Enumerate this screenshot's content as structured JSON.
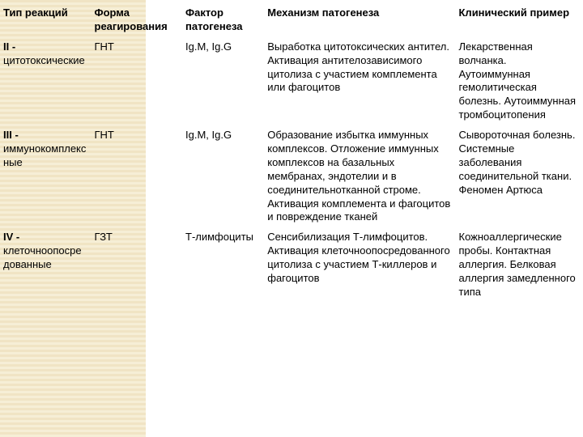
{
  "table": {
    "headers": {
      "c1": "Тип реакций",
      "c2": "Форма реагирования",
      "c3": "Фактор патогенеза",
      "c4": "Механизм патогенеза",
      "c5": "Клинический пример"
    },
    "rows": [
      {
        "type_bold": "II -",
        "type_rest": "цитотоксические",
        "c2": "ГНТ",
        "c3": "Ig.M, Ig.G",
        "c4": "Выработка цитотоксических антител. Активация антителозависимого цитолиза с участием комплемента или фагоцитов",
        "c5": "Лекарственная волчанка. Аутоиммунная гемолитическая болезнь. Аутоиммунная тромбоцитопения"
      },
      {
        "type_bold": "III -",
        "type_rest": "иммунокомплексные",
        "c2": "ГНТ",
        "c3": "Ig.M, Ig.G",
        "c4": "Образование избытка иммунных комплексов. Отложение иммунных комплексов на базальных мембранах, эндотелии и в соединительнотканной строме. Активация комплемента и фагоцитов и повреждение тканей",
        "c5": "Сывороточная болезнь. Системные заболевания соединительной ткани. Феномен Артюса"
      },
      {
        "type_bold": "IV -",
        "type_rest": "клеточноопосредованные",
        "c2": "ГЗТ",
        "c3": "Т-лимфоциты",
        "c4": "Сенсибилизация Т-лимфоцитов. Активация клеточноопосредованного цитолиза с участием Т-киллеров и фагоцитов",
        "c5": "Кожноаллергические пробы. Контактная аллергия. Белковая аллергия замедленного типа"
      }
    ]
  },
  "colors": {
    "stripe_dark": "#f0e4c4",
    "stripe_light": "#f6eed6",
    "text": "#000000",
    "bg": "#ffffff"
  },
  "typography": {
    "font_family": "Arial, sans-serif",
    "font_size_pt": 10,
    "line_height": 1.3
  }
}
